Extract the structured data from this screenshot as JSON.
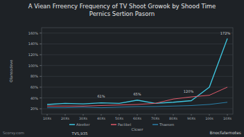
{
  "chart_data": {
    "type": "line",
    "title": "A Viean Frreency Frequency of TV Shoot Growok by Shood Time",
    "subtitle": "Pernics Sertion Pasorn",
    "x_label": "Cicser",
    "y_label": "Olansodeve",
    "footnote": "TVS,935",
    "watermark_left": "Scorsy.com",
    "watermark_right": "Bnocfatemotes",
    "annotations": [
      "61%",
      "65%",
      "120%",
      "172%"
    ],
    "categories": [
      "10Xs",
      "20Xs",
      "30Xs",
      "40Xs",
      "50Xs",
      "60Xs",
      "70Xs",
      "80Xs",
      "90Xs",
      "100s",
      "10Xs"
    ],
    "series": [
      {
        "name": "Aleelter",
        "color": "#3ec6e0",
        "values": [
          28,
          30,
          29,
          31,
          30,
          36,
          30,
          32,
          35,
          60,
          150
        ]
      },
      {
        "name": "Paclibel",
        "color": "#e05a6a",
        "values": [
          25,
          25,
          25,
          26,
          27,
          28,
          30,
          38,
          42,
          45,
          60
        ]
      },
      {
        "name": "Thaesen",
        "color": "#2b7fa8",
        "values": [
          22,
          22,
          23,
          22,
          23,
          24,
          24,
          25,
          26,
          28,
          32
        ]
      }
    ],
    "ylim": [
      10,
      170
    ],
    "yticks": [
      {
        "value": 20,
        "label": "20%"
      },
      {
        "value": 40,
        "label": "40%"
      },
      {
        "value": 60,
        "label": "60%"
      },
      {
        "value": 80,
        "label": "80%"
      },
      {
        "value": 100,
        "label": "100%"
      },
      {
        "value": 120,
        "label": "120%"
      },
      {
        "value": 140,
        "label": "140%"
      },
      {
        "value": 160,
        "label": "160%"
      }
    ],
    "grid": true,
    "legend": "bottom"
  }
}
